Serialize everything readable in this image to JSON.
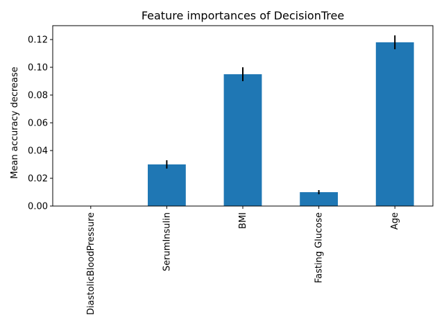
{
  "chart_data": {
    "type": "bar",
    "title": "Feature importances of DecisionTree",
    "xlabel": "",
    "ylabel": "Mean accuracy decrease",
    "categories": [
      "DiastolicBloodPressure",
      "SerumInsulin",
      "BMI",
      "Fasting Glucose",
      "Age"
    ],
    "values": [
      0.0,
      0.03,
      0.095,
      0.01,
      0.118
    ],
    "errors": [
      0.0,
      0.003,
      0.005,
      0.0015,
      0.005
    ],
    "ylim": [
      0,
      0.13
    ],
    "yticks": [
      "0.00",
      "0.02",
      "0.04",
      "0.06",
      "0.08",
      "0.10",
      "0.12"
    ],
    "grid": false,
    "bar_color": "#1f77b4",
    "error_color": "#000000"
  }
}
